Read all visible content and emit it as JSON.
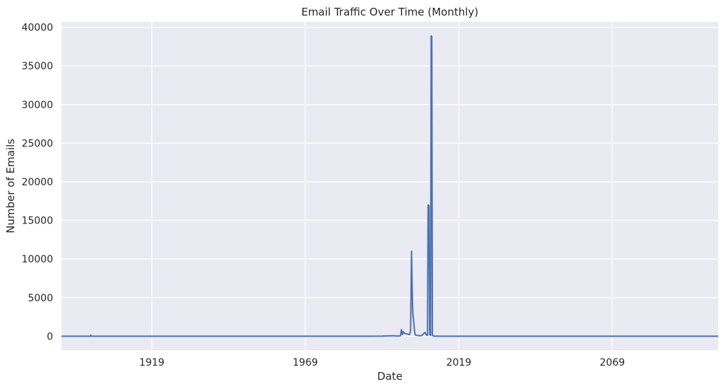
{
  "chart_data": {
    "type": "line",
    "title": "Email Traffic Over Time (Monthly)",
    "xlabel": "Date",
    "ylabel": "Number of Emails",
    "x_ticks": [
      "1919",
      "1969",
      "2019",
      "2069"
    ],
    "y_ticks": [
      "0",
      "5000",
      "10000",
      "15000",
      "20000",
      "25000",
      "30000",
      "35000",
      "40000"
    ],
    "ylim": [
      -1800,
      40700
    ],
    "xlim": [
      1889.6,
      2103.5
    ],
    "grid": true,
    "colors": {
      "background": "#eaeaf2",
      "grid": "#ffffff",
      "line": "#4c72b0",
      "text": "#262626"
    },
    "series": [
      {
        "x": [
          1889.6,
          1899.0,
          1899.1,
          1899.2,
          1899.3,
          1930.0,
          1960.0,
          1990.0,
          1994.0,
          1996.0,
          1998.0,
          1998.5,
          1999.0,
          2000.0,
          2000.3,
          2000.6,
          2000.9,
          2001.2,
          2001.5,
          2002.0,
          2002.5,
          2003.0,
          2003.3,
          2003.6,
          2003.8,
          2004.0,
          2004.2,
          2004.4,
          2004.6,
          2004.8,
          2005.0,
          2005.5,
          2006.0,
          2006.5,
          2007.0,
          2007.5,
          2008.0,
          2008.4,
          2008.8,
          2009.0,
          2009.3,
          2009.5,
          2009.8,
          2010.0,
          2010.2,
          2010.4,
          2010.6,
          2010.8,
          2011.0,
          2011.5,
          2012.0,
          2013.0,
          2016.0,
          2020.0,
          2060.0,
          2103.5
        ],
        "y": [
          0,
          0,
          150,
          20,
          0,
          0,
          0,
          0,
          10,
          40,
          60,
          30,
          20,
          50,
          850,
          200,
          600,
          400,
          350,
          300,
          250,
          200,
          800,
          11000,
          6500,
          3000,
          2300,
          1500,
          600,
          200,
          120,
          100,
          80,
          60,
          100,
          300,
          500,
          150,
          100,
          17000,
          16900,
          200,
          100,
          38900,
          38800,
          100,
          50,
          30,
          20,
          10,
          5,
          0,
          0,
          0,
          0,
          0
        ]
      }
    ]
  }
}
